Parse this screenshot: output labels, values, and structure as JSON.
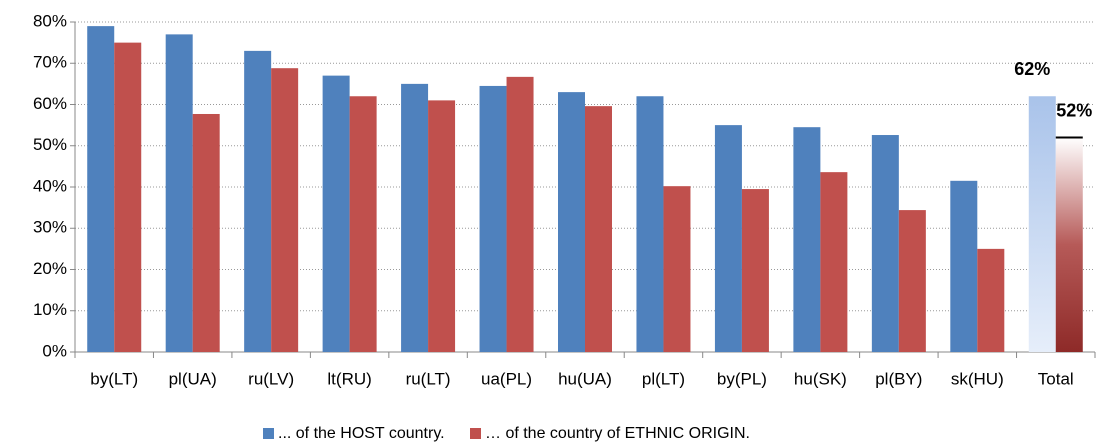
{
  "chart_data": {
    "type": "bar",
    "categories": [
      "by(LT)",
      "pl(UA)",
      "ru(LV)",
      "lt(RU)",
      "ru(LT)",
      "ua(PL)",
      "hu(UA)",
      "pl(LT)",
      "by(PL)",
      "hu(SK)",
      "pl(BY)",
      "sk(HU)",
      "Total"
    ],
    "series": [
      {
        "name": "... of the HOST country.",
        "color": "#4f81bd",
        "values": [
          79,
          77,
          73,
          67,
          65,
          64.5,
          63,
          62,
          55,
          54.5,
          52.6,
          41.5,
          62
        ],
        "value_labels": [
          null,
          null,
          null,
          null,
          null,
          null,
          null,
          null,
          null,
          null,
          null,
          null,
          "62%"
        ]
      },
      {
        "name": "… of the country of ETHNIC ORIGIN.",
        "color": "#c0504d",
        "values": [
          75,
          57.7,
          68.8,
          62,
          61,
          66.7,
          59.6,
          40.2,
          39.5,
          43.6,
          34.4,
          25,
          52
        ],
        "value_labels": [
          null,
          null,
          null,
          null,
          null,
          null,
          null,
          null,
          null,
          null,
          null,
          null,
          "52%"
        ]
      }
    ],
    "ylim": [
      0,
      80
    ],
    "yticks": [
      {
        "value": 0,
        "label": "0%"
      },
      {
        "value": 10,
        "label": "10%"
      },
      {
        "value": 20,
        "label": "20%"
      },
      {
        "value": 30,
        "label": "30%"
      },
      {
        "value": 40,
        "label": "40%"
      },
      {
        "value": 50,
        "label": "50%"
      },
      {
        "value": 60,
        "label": "60%"
      },
      {
        "value": 70,
        "label": "70%"
      },
      {
        "value": 80,
        "label": "80%"
      }
    ],
    "grid": true,
    "legend": "bottom"
  }
}
